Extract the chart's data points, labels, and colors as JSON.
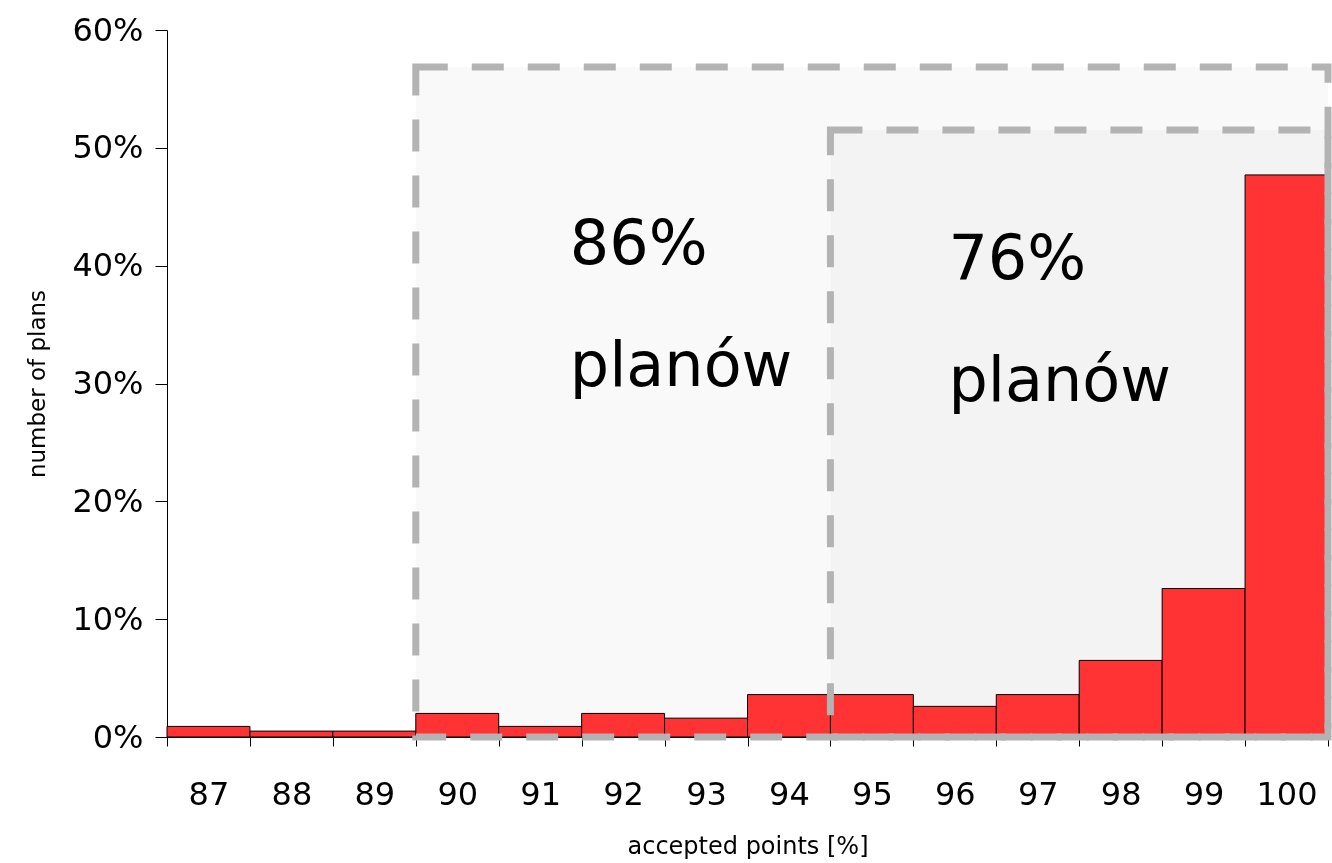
{
  "chart_data": {
    "type": "histogram",
    "xlabel": "accepted points [%]",
    "ylabel": "number of plans",
    "bins": [
      86.5,
      87.5,
      88.5,
      89.5,
      90.5,
      91.5,
      92.5,
      93.5,
      94.5,
      95.5,
      96.5,
      97.5,
      98.5,
      99.5,
      100.5
    ],
    "values": [
      0.9,
      0.5,
      0.5,
      2.0,
      0.9,
      2.0,
      1.6,
      3.6,
      3.6,
      2.6,
      3.6,
      6.5,
      12.6,
      47.7
    ],
    "color": "#ff3333",
    "xlim": [
      86.5,
      100.5
    ],
    "xticks": [
      {
        "value": 86.5,
        "label": null
      },
      87,
      {
        "value": 87.5,
        "label": null
      },
      88,
      {
        "value": 88.5,
        "label": null
      },
      89,
      {
        "value": 89.5,
        "label": null
      },
      90,
      {
        "value": 90.5,
        "label": null
      },
      91,
      {
        "value": 91.5,
        "label": null
      },
      92,
      {
        "value": 92.5,
        "label": null
      },
      93,
      {
        "value": 93.5,
        "label": null
      },
      94,
      {
        "value": 94.5,
        "label": null
      },
      95,
      {
        "value": 95.5,
        "label": null
      },
      96,
      {
        "value": 96.5,
        "label": null
      },
      97,
      {
        "value": 97.5,
        "label": null
      },
      98,
      {
        "value": 98.5,
        "label": null
      },
      99,
      {
        "value": 99.5,
        "label": null
      },
      100,
      {
        "value": 100.5,
        "label": null
      }
    ],
    "ylim": [
      0,
      60
    ],
    "yticks": [
      {
        "value": 0,
        "label": "0%"
      },
      {
        "value": 10,
        "label": "10%"
      },
      {
        "value": 20,
        "label": "20%"
      },
      {
        "value": 30,
        "label": "30%"
      },
      {
        "value": 40,
        "label": "40%"
      },
      {
        "value": 50,
        "label": "50%"
      },
      {
        "value": 60,
        "label": "60%"
      }
    ],
    "bands": [
      {
        "axis": "x",
        "from": 89.5,
        "to": 100.5,
        "label": "86% planów",
        "color": "#b3b3b3"
      },
      {
        "axis": "x",
        "from": 94.5,
        "to": 100.5,
        "label": "76% planów",
        "color": "#b3b3b3"
      }
    ]
  }
}
